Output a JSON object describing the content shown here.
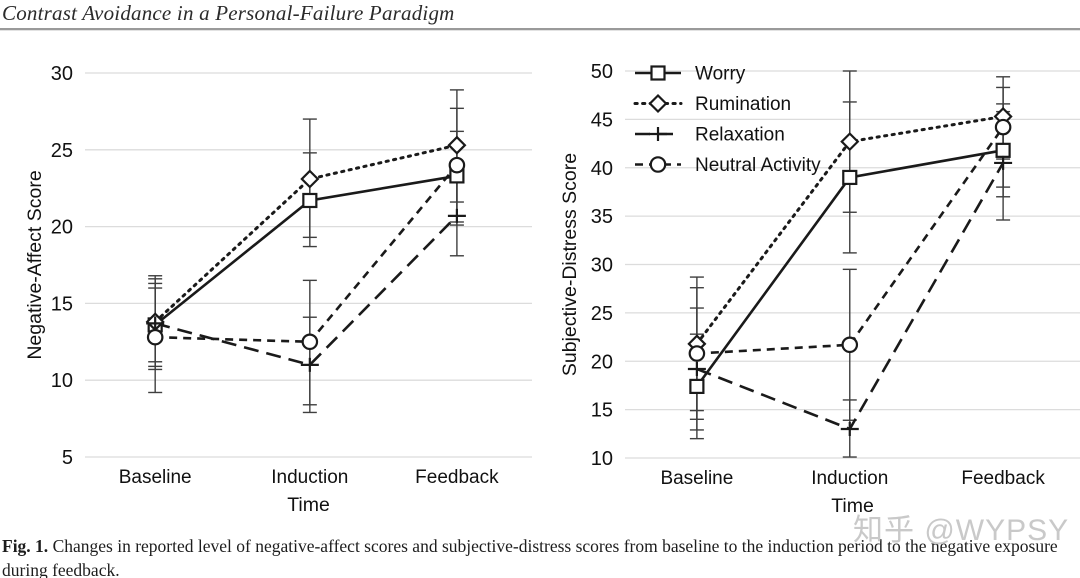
{
  "page": {
    "header_title": "Contrast Avoidance in a Personal-Failure Paradigm",
    "caption_label": "Fig. 1.",
    "caption_text": " Changes in reported level of negative-affect scores and subjective-distress scores from baseline to the induction period to the negative exposure during feedback.",
    "watermark": "知乎 @WYPSY"
  },
  "colors": {
    "line": "#1a1a1a",
    "grid": "#dcdcdc",
    "error_bar": "#3f3f3f",
    "text": "#111111",
    "watermark": "#c9c9c9",
    "header_rule": "#9a9a9a"
  },
  "chart_data": [
    {
      "type": "line",
      "title": "",
      "xlabel": "Time",
      "ylabel": "Negative-Affect Score",
      "categories": [
        "Baseline",
        "Induction",
        "Feedback"
      ],
      "ylim": [
        5,
        30
      ],
      "yticks": [
        5,
        10,
        15,
        20,
        25,
        30
      ],
      "grid": true,
      "legend": false,
      "series": [
        {
          "name": "Worry",
          "marker": "square",
          "line": "solid",
          "values": [
            13.6,
            21.7,
            23.3
          ],
          "err_lo": [
            11.2,
            19.3,
            20.3
          ],
          "err_hi": [
            16.0,
            24.8,
            26.2
          ]
        },
        {
          "name": "Rumination",
          "marker": "diamond",
          "line": "dotted",
          "values": [
            13.8,
            23.1,
            25.3
          ],
          "err_lo": [
            10.9,
            18.7,
            21.6
          ],
          "err_hi": [
            16.6,
            27.0,
            28.9
          ]
        },
        {
          "name": "Relaxation",
          "marker": "plus",
          "line": "longdash",
          "values": [
            13.7,
            11.0,
            20.7
          ],
          "err_lo": [
            10.7,
            7.9,
            18.1
          ],
          "err_hi": [
            16.8,
            14.1,
            23.3
          ]
        },
        {
          "name": "Neutral Activity",
          "marker": "circle",
          "line": "dash",
          "values": [
            12.8,
            12.5,
            24.0
          ],
          "err_lo": [
            9.2,
            8.4,
            20.1
          ],
          "err_hi": [
            16.3,
            16.5,
            27.7
          ]
        }
      ]
    },
    {
      "type": "line",
      "title": "",
      "xlabel": "Time",
      "ylabel": "Subjective-Distress Score",
      "categories": [
        "Baseline",
        "Induction",
        "Feedback"
      ],
      "ylim": [
        10,
        50
      ],
      "yticks": [
        10,
        15,
        20,
        25,
        30,
        35,
        40,
        45,
        50
      ],
      "grid": true,
      "legend": true,
      "legend_position": "top-left-inside",
      "series": [
        {
          "name": "Worry",
          "marker": "square",
          "line": "solid",
          "values": [
            17.4,
            39.0,
            41.8
          ],
          "err_lo": [
            12.0,
            31.2,
            37.0
          ],
          "err_hi": [
            22.8,
            46.8,
            46.6
          ]
        },
        {
          "name": "Rumination",
          "marker": "diamond",
          "line": "dotted",
          "values": [
            21.8,
            42.7,
            45.3
          ],
          "err_lo": [
            14.9,
            35.4,
            40.9
          ],
          "err_hi": [
            28.7,
            50.0,
            49.4
          ]
        },
        {
          "name": "Relaxation",
          "marker": "plus",
          "line": "longdash",
          "values": [
            19.2,
            13.0,
            40.5
          ],
          "err_lo": [
            12.9,
            10.1,
            34.6
          ],
          "err_hi": [
            25.5,
            16.0,
            45.8
          ]
        },
        {
          "name": "Neutral Activity",
          "marker": "circle",
          "line": "dash",
          "values": [
            20.8,
            21.7,
            44.2
          ],
          "err_lo": [
            14.0,
            13.9,
            38.0
          ],
          "err_hi": [
            27.6,
            29.5,
            48.3
          ]
        }
      ]
    }
  ]
}
